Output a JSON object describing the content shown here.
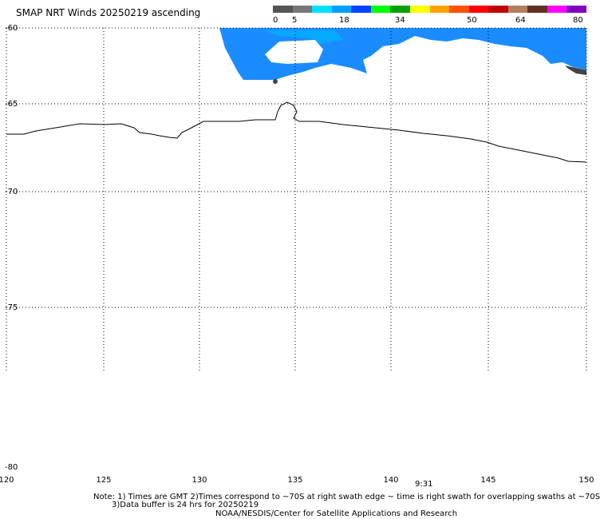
{
  "title": "SMAP NRT Winds 20250219 ascending",
  "colorbar": {
    "labels": [
      "0",
      "5",
      "18",
      "34",
      "50",
      "64",
      "80"
    ],
    "colors": [
      "#555555",
      "#777777",
      "#00e0ff",
      "#00a0ff",
      "#0044ff",
      "#00ff00",
      "#00a000",
      "#ffff00",
      "#ffa000",
      "#ff5000",
      "#ff0000",
      "#c00000",
      "#b08060",
      "#603020",
      "#ff00ff",
      "#8000c0"
    ]
  },
  "lat_labels": [
    "-60",
    "-65",
    "-70",
    "-75",
    "-80"
  ],
  "lon_labels": [
    "120",
    "125",
    "130",
    "135",
    "140",
    "145",
    "150"
  ],
  "time_label": "9:31",
  "notes": {
    "line1": "Note: 1) Times are GMT 2)Times correspond to ~70S at right swath edge ~ time is right swath for overlapping swaths at ~70S",
    "line2": "3)Data buffer is 24 hrs for 20250219",
    "line3": "NOAA/NESDIS/Center for Satellite Applications and Research"
  },
  "colors": {
    "swath_blue": "#1a8cff",
    "swath_light": "#00b0ff",
    "swath_dark": "#444444"
  }
}
